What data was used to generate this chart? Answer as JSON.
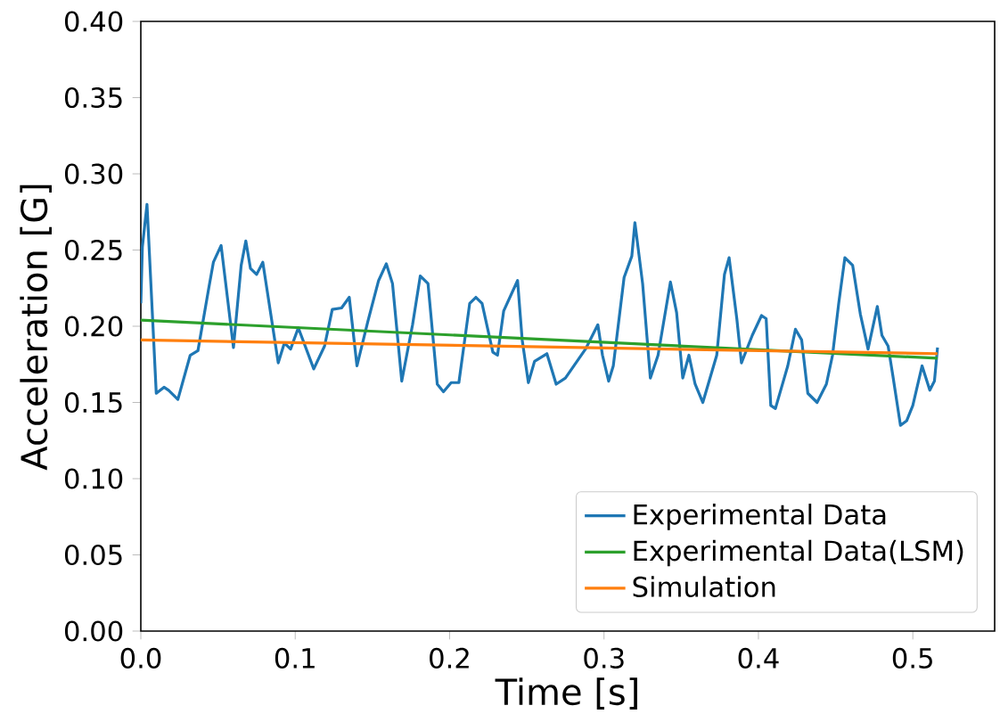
{
  "chart_data": {
    "type": "line",
    "xlabel": "Time [s]",
    "ylabel": "Acceleration [G]",
    "xlim": [
      0,
      0.553
    ],
    "ylim": [
      0,
      0.4
    ],
    "xticks": [
      {
        "value": 0,
        "label": "0.0"
      },
      0.1,
      0.2,
      0.3,
      0.4,
      0.5
    ],
    "yticks": [
      {
        "value": 0,
        "label": "0.00"
      },
      0.05,
      {
        "value": 0.1,
        "label": "0.10"
      },
      0.15,
      {
        "value": 0.2,
        "label": "0.20"
      },
      0.25,
      {
        "value": 0.3,
        "label": "0.30"
      },
      0.35,
      {
        "value": 0.4,
        "label": "0.40"
      }
    ],
    "legend": "bottom right",
    "series": [
      {
        "name": "Experimental Data",
        "color": "#1f77b4",
        "x": [
          0,
          0.001,
          0.004,
          0.01,
          0.015,
          0.018,
          0.024,
          0.032,
          0.037,
          0.044,
          0.047,
          0.052,
          0.06,
          0.065,
          0.068,
          0.071,
          0.075,
          0.079,
          0.084,
          0.089,
          0.093,
          0.097,
          0.102,
          0.112,
          0.119,
          0.124,
          0.13,
          0.135,
          0.14,
          0.147,
          0.154,
          0.159,
          0.163,
          0.169,
          0.176,
          0.181,
          0.186,
          0.192,
          0.196,
          0.201,
          0.206,
          0.213,
          0.217,
          0.221,
          0.228,
          0.231,
          0.235,
          0.244,
          0.247,
          0.251,
          0.255,
          0.263,
          0.269,
          0.275,
          0.288,
          0.296,
          0.299,
          0.303,
          0.306,
          0.313,
          0.318,
          0.32,
          0.325,
          0.33,
          0.335,
          0.343,
          0.347,
          0.351,
          0.355,
          0.359,
          0.364,
          0.373,
          0.378,
          0.381,
          0.386,
          0.389,
          0.396,
          0.402,
          0.405,
          0.408,
          0.411,
          0.415,
          0.419,
          0.424,
          0.428,
          0.432,
          0.438,
          0.444,
          0.448,
          0.452,
          0.456,
          0.461,
          0.466,
          0.471,
          0.477,
          0.48,
          0.484,
          0.487,
          0.492,
          0.496,
          0.5,
          0.506,
          0.511,
          0.514,
          0.516
        ],
        "values": [
          0.215,
          0.252,
          0.28,
          0.156,
          0.16,
          0.158,
          0.152,
          0.181,
          0.184,
          0.225,
          0.242,
          0.253,
          0.186,
          0.24,
          0.256,
          0.238,
          0.234,
          0.242,
          0.209,
          0.176,
          0.189,
          0.185,
          0.199,
          0.172,
          0.187,
          0.211,
          0.212,
          0.219,
          0.174,
          0.203,
          0.23,
          0.241,
          0.228,
          0.164,
          0.201,
          0.233,
          0.228,
          0.162,
          0.157,
          0.163,
          0.163,
          0.215,
          0.219,
          0.215,
          0.183,
          0.181,
          0.21,
          0.23,
          0.191,
          0.163,
          0.177,
          0.182,
          0.162,
          0.166,
          0.185,
          0.201,
          0.181,
          0.164,
          0.174,
          0.232,
          0.246,
          0.268,
          0.228,
          0.166,
          0.181,
          0.229,
          0.209,
          0.166,
          0.181,
          0.162,
          0.15,
          0.181,
          0.234,
          0.245,
          0.205,
          0.176,
          0.194,
          0.207,
          0.205,
          0.148,
          0.146,
          0.16,
          0.174,
          0.198,
          0.191,
          0.156,
          0.15,
          0.162,
          0.181,
          0.215,
          0.245,
          0.24,
          0.208,
          0.185,
          0.213,
          0.194,
          0.187,
          0.168,
          0.135,
          0.138,
          0.148,
          0.174,
          0.158,
          0.164,
          0.186
        ]
      },
      {
        "name": "Experimental Data(LSM)",
        "color": "#2ca02c",
        "x": [
          0,
          0.516
        ],
        "values": [
          0.204,
          0.179
        ]
      },
      {
        "name": "Simulation",
        "color": "#ff7f0e",
        "x": [
          0,
          0.516
        ],
        "values": [
          0.191,
          0.182
        ]
      }
    ]
  }
}
